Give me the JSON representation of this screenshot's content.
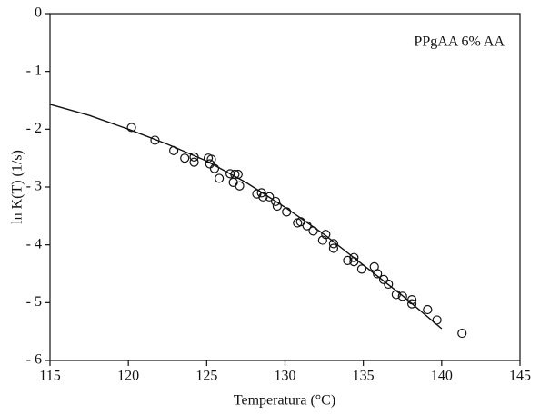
{
  "chart_data": {
    "type": "scatter",
    "xlabel": "Temperatura (°C)",
    "ylabel": "ln K(T)  (1/s)",
    "annotation": "PPgAA 6% AA",
    "xlim": [
      115,
      145
    ],
    "xticks": [
      115,
      120,
      125,
      130,
      135,
      140,
      145
    ],
    "ylim": [
      -6,
      0
    ],
    "yticks": [
      0,
      {
        "value": -1,
        "label": "- 1"
      },
      {
        "value": -2,
        "label": "- 2"
      },
      {
        "value": -3,
        "label": "- 3"
      },
      {
        "value": -4,
        "label": "- 4"
      },
      {
        "value": -5,
        "label": "- 5"
      },
      {
        "value": -6,
        "label": "- 6"
      }
    ],
    "series": [
      {
        "mark": "circle",
        "color": "#111111",
        "x": [
          120.2,
          121.7,
          122.9,
          123.6,
          124.2,
          124.2,
          125.1,
          125.3,
          125.2,
          125.5,
          125.8,
          126.5,
          126.8,
          126.7,
          127.1,
          127.0,
          128.2,
          128.5,
          128.6,
          129.0,
          129.4,
          129.5,
          130.1,
          130.8,
          131.0,
          131.4,
          131.8,
          132.4,
          132.6,
          133.1,
          133.1,
          134.0,
          134.4,
          134.4,
          134.9,
          135.7,
          135.9,
          136.3,
          136.6,
          137.1,
          137.5,
          138.1,
          138.1,
          139.1,
          139.7,
          141.3
        ],
        "values": [
          -1.97,
          -2.19,
          -2.37,
          -2.5,
          -2.48,
          -2.57,
          -2.5,
          -2.52,
          -2.6,
          -2.68,
          -2.85,
          -2.77,
          -2.78,
          -2.92,
          -2.98,
          -2.78,
          -3.12,
          -3.1,
          -3.17,
          -3.17,
          -3.25,
          -3.33,
          -3.43,
          -3.62,
          -3.6,
          -3.67,
          -3.76,
          -3.92,
          -3.82,
          -3.98,
          -4.06,
          -4.27,
          -4.22,
          -4.29,
          -4.42,
          -4.38,
          -4.5,
          -4.6,
          -4.68,
          -4.86,
          -4.89,
          -4.95,
          -5.02,
          -5.12,
          -5.3,
          -5.53
        ]
      },
      {
        "mark": "line",
        "color": "#111111",
        "x": [
          115,
          117.5,
          120,
          122.5,
          125,
          127.5,
          130,
          132.5,
          135,
          137.5,
          140
        ],
        "values": [
          -1.57,
          -1.76,
          -2.0,
          -2.26,
          -2.55,
          -2.92,
          -3.35,
          -3.82,
          -4.35,
          -4.88,
          -5.45
        ]
      }
    ]
  }
}
